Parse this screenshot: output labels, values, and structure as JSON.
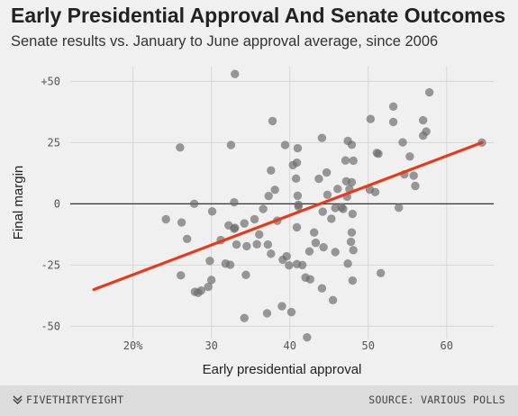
{
  "chart_data": {
    "type": "scatter",
    "title": "Early Presidential Approval And Senate Outcomes",
    "subtitle": "Senate results vs. January to June approval average, since 2006",
    "xlabel": "Early presidential approval",
    "ylabel": "Final margin",
    "xlim": [
      12,
      66
    ],
    "ylim": [
      -55,
      56
    ],
    "x_ticks": [
      20,
      30,
      40,
      50,
      60
    ],
    "x_tick_labels": [
      "20%",
      "30",
      "40",
      "50",
      "60"
    ],
    "y_ticks": [
      50,
      25,
      0,
      -25,
      -50
    ],
    "y_tick_labels": [
      "+50",
      "25",
      "0",
      "-25",
      "-50"
    ],
    "grid": true,
    "zero_line": true,
    "point_color": "#6b6b6b",
    "trend_color": "#e8391a",
    "trend_line": {
      "x": [
        15,
        64.5
      ],
      "y": [
        -35,
        25
      ]
    },
    "points": [
      {
        "x": 33,
        "y": 53
      },
      {
        "x": 57.8,
        "y": 45.5
      },
      {
        "x": 53.2,
        "y": 39.7
      },
      {
        "x": 50.3,
        "y": 34.6
      },
      {
        "x": 53.2,
        "y": 33.4
      },
      {
        "x": 57.0,
        "y": 34.1
      },
      {
        "x": 37.8,
        "y": 33.8
      },
      {
        "x": 57.4,
        "y": 29.5
      },
      {
        "x": 57.0,
        "y": 27.8
      },
      {
        "x": 44.1,
        "y": 26.9
      },
      {
        "x": 47.4,
        "y": 25.7
      },
      {
        "x": 54.4,
        "y": 25.1
      },
      {
        "x": 26,
        "y": 23
      },
      {
        "x": 32.5,
        "y": 24
      },
      {
        "x": 39.4,
        "y": 24
      },
      {
        "x": 41.0,
        "y": 22.7
      },
      {
        "x": 47.9,
        "y": 24.1
      },
      {
        "x": 51.1,
        "y": 20.8
      },
      {
        "x": 51.3,
        "y": 20.4
      },
      {
        "x": 55.3,
        "y": 19.3
      },
      {
        "x": 40.9,
        "y": 16.8
      },
      {
        "x": 40.4,
        "y": 15.8
      },
      {
        "x": 47.1,
        "y": 17.7
      },
      {
        "x": 48.1,
        "y": 17.6
      },
      {
        "x": 37.6,
        "y": 13.6
      },
      {
        "x": 43.7,
        "y": 10.2
      },
      {
        "x": 44.7,
        "y": 12.8
      },
      {
        "x": 47.2,
        "y": 9.2
      },
      {
        "x": 54.6,
        "y": 12.0
      },
      {
        "x": 55.8,
        "y": 11.5
      },
      {
        "x": 40.8,
        "y": 10.3
      },
      {
        "x": 47.9,
        "y": 8.8
      },
      {
        "x": 50.2,
        "y": 5.8
      },
      {
        "x": 56.0,
        "y": 7.3
      },
      {
        "x": 38.1,
        "y": 5.7
      },
      {
        "x": 46.1,
        "y": 6.1
      },
      {
        "x": 47.6,
        "y": 6.0
      },
      {
        "x": 50.9,
        "y": 4.8
      },
      {
        "x": 37.3,
        "y": 3.2
      },
      {
        "x": 41.0,
        "y": 3.3
      },
      {
        "x": 44.8,
        "y": 3.7
      },
      {
        "x": 47.3,
        "y": 2.9
      },
      {
        "x": 27.8,
        "y": 0.0
      },
      {
        "x": 32.9,
        "y": 0.6
      },
      {
        "x": 41.1,
        "y": -0.4
      },
      {
        "x": 41.1,
        "y": -1.1
      },
      {
        "x": 45.8,
        "y": -1.7
      },
      {
        "x": 46.6,
        "y": -1.4
      },
      {
        "x": 46.8,
        "y": -2.1
      },
      {
        "x": 53.9,
        "y": -1.6
      },
      {
        "x": 36.6,
        "y": -2.1
      },
      {
        "x": 44.2,
        "y": -3.2
      },
      {
        "x": 48.0,
        "y": -4.1
      },
      {
        "x": 24.2,
        "y": -6.3
      },
      {
        "x": 26.2,
        "y": -7.6
      },
      {
        "x": 35.5,
        "y": -6.3
      },
      {
        "x": 38.4,
        "y": -6.9
      },
      {
        "x": 45.3,
        "y": -6.1
      },
      {
        "x": 30.1,
        "y": -3.1
      },
      {
        "x": 32.2,
        "y": -8.8
      },
      {
        "x": 33.0,
        "y": -9.8
      },
      {
        "x": 34.2,
        "y": -8.0
      },
      {
        "x": 32.9,
        "y": -10.2
      },
      {
        "x": 40.9,
        "y": -9.6
      },
      {
        "x": 43.1,
        "y": -11.7
      },
      {
        "x": 47.9,
        "y": -11.7
      },
      {
        "x": 36.1,
        "y": -12.5
      },
      {
        "x": 26.9,
        "y": -14.3
      },
      {
        "x": 31.2,
        "y": -14.8
      },
      {
        "x": 33.2,
        "y": -16.6
      },
      {
        "x": 34.5,
        "y": -17.3
      },
      {
        "x": 35.8,
        "y": -16.5
      },
      {
        "x": 37.2,
        "y": -16.6
      },
      {
        "x": 43.3,
        "y": -15.9
      },
      {
        "x": 47.8,
        "y": -15.5
      },
      {
        "x": 44.3,
        "y": -17.7
      },
      {
        "x": 37.6,
        "y": -20.4
      },
      {
        "x": 39.6,
        "y": -21.4
      },
      {
        "x": 39.1,
        "y": -22.8
      },
      {
        "x": 42.5,
        "y": -19.4
      },
      {
        "x": 45.8,
        "y": -19.7
      },
      {
        "x": 48.1,
        "y": -18.9
      },
      {
        "x": 29.8,
        "y": -23.3
      },
      {
        "x": 31.8,
        "y": -24.4
      },
      {
        "x": 32.4,
        "y": -24.9
      },
      {
        "x": 39.9,
        "y": -25.1
      },
      {
        "x": 40.9,
        "y": -24.6
      },
      {
        "x": 41.6,
        "y": -25.0
      },
      {
        "x": 47.4,
        "y": -24.4
      },
      {
        "x": 26.1,
        "y": -29.2
      },
      {
        "x": 30.0,
        "y": -31.1
      },
      {
        "x": 34.4,
        "y": -29.0
      },
      {
        "x": 42.0,
        "y": -30.1
      },
      {
        "x": 42.6,
        "y": -30.8
      },
      {
        "x": 48.0,
        "y": -31.3
      },
      {
        "x": 51.6,
        "y": -28.3
      },
      {
        "x": 28.7,
        "y": -35.4
      },
      {
        "x": 29.6,
        "y": -33.9
      },
      {
        "x": 27.9,
        "y": -35.9
      },
      {
        "x": 28.3,
        "y": -36.3
      },
      {
        "x": 44.1,
        "y": -34.5
      },
      {
        "x": 45.5,
        "y": -39.3
      },
      {
        "x": 39.0,
        "y": -41.8
      },
      {
        "x": 37.1,
        "y": -44.7
      },
      {
        "x": 40.2,
        "y": -44.2
      },
      {
        "x": 34.2,
        "y": -46.6
      },
      {
        "x": 42.2,
        "y": -54.5
      },
      {
        "x": 64.5,
        "y": 25.0
      }
    ]
  },
  "footer": {
    "brand": "FIVETHIRTYEIGHT",
    "source": "SOURCE: VARIOUS POLLS"
  }
}
